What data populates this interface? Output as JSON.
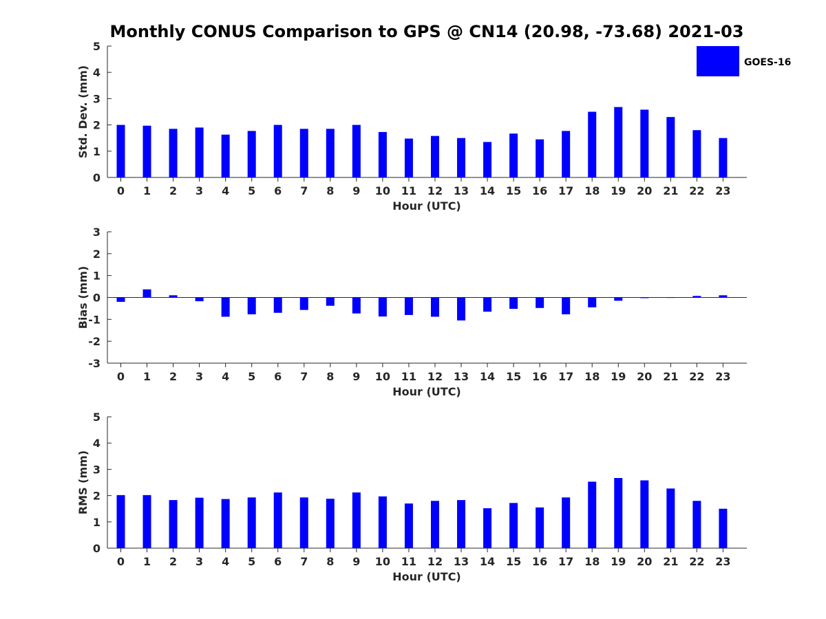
{
  "title": "Monthly CONUS Comparison to GPS @ CN14 (20.98, -73.68) 2021-03",
  "legend": {
    "label": "GOES-16",
    "color": "#0000ff",
    "placement": "top-right"
  },
  "colors": {
    "bar": "#0000ff",
    "axis": "#262626",
    "zero_line": "#262626"
  },
  "chart_data": [
    {
      "type": "bar",
      "xlabel": "Hour (UTC)",
      "ylabel": "Std. Dev. (mm)",
      "ylim": [
        0,
        5
      ],
      "yticks": [
        0,
        1,
        2,
        3,
        4,
        5
      ],
      "categories": [
        "0",
        "1",
        "2",
        "3",
        "4",
        "5",
        "6",
        "7",
        "8",
        "9",
        "10",
        "11",
        "12",
        "13",
        "14",
        "15",
        "16",
        "17",
        "18",
        "19",
        "20",
        "21",
        "22",
        "23"
      ],
      "series": [
        {
          "name": "GOES-16",
          "values": [
            2.0,
            1.97,
            1.85,
            1.9,
            1.63,
            1.77,
            2.0,
            1.85,
            1.85,
            2.0,
            1.73,
            1.48,
            1.58,
            1.5,
            1.35,
            1.67,
            1.45,
            1.77,
            2.5,
            2.68,
            2.58,
            2.3,
            1.8,
            1.5
          ]
        }
      ],
      "grid": false
    },
    {
      "type": "bar",
      "xlabel": "Hour (UTC)",
      "ylabel": "Bias (mm)",
      "ylim": [
        -3,
        3
      ],
      "yticks": [
        -3,
        -2,
        -1,
        0,
        1,
        2,
        3
      ],
      "categories": [
        "0",
        "1",
        "2",
        "3",
        "4",
        "5",
        "6",
        "7",
        "8",
        "9",
        "10",
        "11",
        "12",
        "13",
        "14",
        "15",
        "16",
        "17",
        "18",
        "19",
        "20",
        "21",
        "22",
        "23"
      ],
      "series": [
        {
          "name": "GOES-16",
          "values": [
            -0.2,
            0.37,
            0.1,
            -0.17,
            -0.88,
            -0.77,
            -0.7,
            -0.57,
            -0.38,
            -0.73,
            -0.87,
            -0.8,
            -0.88,
            -1.05,
            -0.65,
            -0.52,
            -0.48,
            -0.77,
            -0.45,
            -0.15,
            -0.03,
            -0.02,
            0.07,
            0.1
          ]
        }
      ],
      "grid": false
    },
    {
      "type": "bar",
      "xlabel": "Hour (UTC)",
      "ylabel": "RMS (mm)",
      "ylim": [
        0,
        5
      ],
      "yticks": [
        0,
        1,
        2,
        3,
        4,
        5
      ],
      "categories": [
        "0",
        "1",
        "2",
        "3",
        "4",
        "5",
        "6",
        "7",
        "8",
        "9",
        "10",
        "11",
        "12",
        "13",
        "14",
        "15",
        "16",
        "17",
        "18",
        "19",
        "20",
        "21",
        "22",
        "23"
      ],
      "series": [
        {
          "name": "GOES-16",
          "values": [
            2.02,
            2.02,
            1.83,
            1.92,
            1.87,
            1.93,
            2.12,
            1.93,
            1.88,
            2.12,
            1.97,
            1.7,
            1.8,
            1.83,
            1.52,
            1.72,
            1.55,
            1.93,
            2.53,
            2.67,
            2.58,
            2.27,
            1.8,
            1.5
          ]
        }
      ],
      "grid": false
    }
  ]
}
